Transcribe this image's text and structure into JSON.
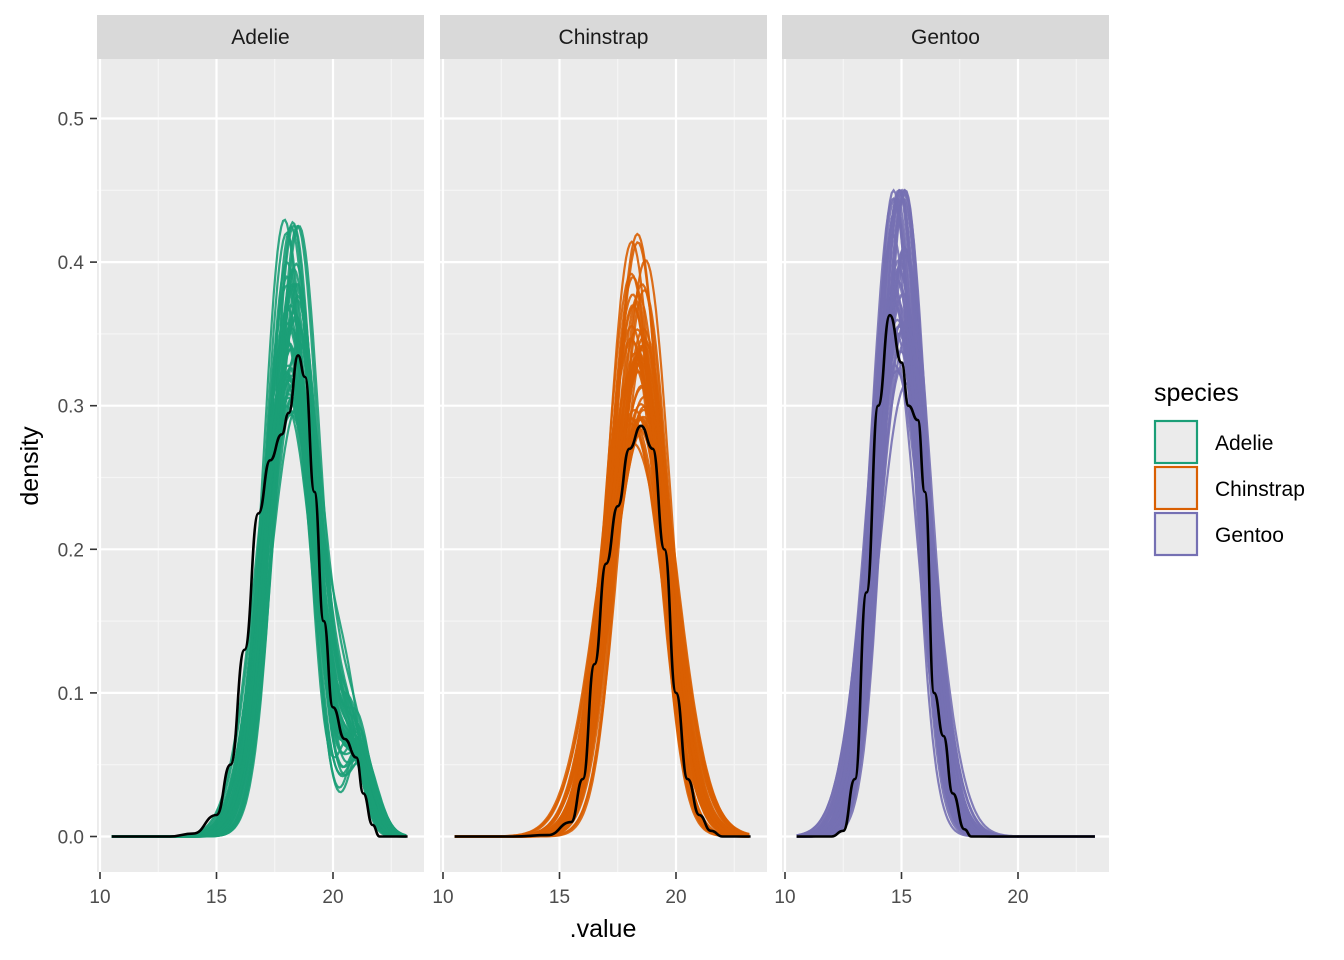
{
  "chart_data": {
    "type": "line",
    "xlabel": ".value",
    "ylabel": "density",
    "xlim": [
      10,
      23.5
    ],
    "ylim": [
      0,
      0.53
    ],
    "x_ticks": [
      10,
      15,
      20
    ],
    "y_ticks": [
      0.0,
      0.1,
      0.2,
      0.3,
      0.4,
      0.5
    ],
    "y_tick_labels": [
      "0.0",
      "0.1",
      "0.2",
      "0.3",
      "0.4",
      "0.5"
    ],
    "grid": true,
    "legend": {
      "title": "species",
      "placement": "right",
      "entries": [
        "Adelie",
        "Chinstrap",
        "Gentoo"
      ]
    },
    "colors": {
      "Adelie": "#1b9e77",
      "Chinstrap": "#d95f02",
      "Gentoo": "#7570b3",
      "observed": "#000000",
      "panel_bg": "#ebebeb",
      "strip_bg": "#d9d9d9",
      "grid": "#ffffff"
    },
    "replicate_count": 50,
    "panels": [
      {
        "name": "Adelie",
        "x_range": [
          10.5,
          23.2
        ],
        "observed": [
          [
            10.5,
            0
          ],
          [
            12,
            0
          ],
          [
            13,
            0
          ],
          [
            14,
            0.002
          ],
          [
            15,
            0.015
          ],
          [
            15.6,
            0.05
          ],
          [
            16.2,
            0.13
          ],
          [
            16.8,
            0.225
          ],
          [
            17.3,
            0.262
          ],
          [
            17.8,
            0.28
          ],
          [
            18.1,
            0.295
          ],
          [
            18.5,
            0.335
          ],
          [
            18.8,
            0.32
          ],
          [
            19.2,
            0.24
          ],
          [
            19.6,
            0.15
          ],
          [
            20,
            0.09
          ],
          [
            20.5,
            0.068
          ],
          [
            21,
            0.055
          ],
          [
            21.3,
            0.03
          ],
          [
            21.7,
            0.008
          ],
          [
            22,
            0
          ],
          [
            23.2,
            0
          ]
        ],
        "rep_params": {
          "components": [
            {
              "mean": 18.2,
              "sd": 1.05,
              "weight": 0.92
            },
            {
              "mean": 21.0,
              "sd": 0.6,
              "weight": 0.08
            }
          ],
          "max_peak": 0.47
        }
      },
      {
        "name": "Chinstrap",
        "x_range": [
          10.5,
          23.2
        ],
        "observed": [
          [
            10.5,
            0
          ],
          [
            13,
            0
          ],
          [
            14.5,
            0.001
          ],
          [
            15.5,
            0.01
          ],
          [
            16,
            0.04
          ],
          [
            16.5,
            0.12
          ],
          [
            17,
            0.19
          ],
          [
            17.5,
            0.23
          ],
          [
            18,
            0.27
          ],
          [
            18.5,
            0.286
          ],
          [
            19,
            0.27
          ],
          [
            19.5,
            0.2
          ],
          [
            20,
            0.1
          ],
          [
            20.5,
            0.04
          ],
          [
            21,
            0.015
          ],
          [
            21.5,
            0.004
          ],
          [
            22,
            0
          ],
          [
            23.2,
            0
          ]
        ],
        "rep_params": {
          "components": [
            {
              "mean": 18.4,
              "sd": 1.25,
              "weight": 1.0
            }
          ],
          "max_peak": 0.515
        }
      },
      {
        "name": "Gentoo",
        "x_range": [
          10.5,
          23.3
        ],
        "observed": [
          [
            10.5,
            0
          ],
          [
            12,
            0
          ],
          [
            12.5,
            0.004
          ],
          [
            13,
            0.04
          ],
          [
            13.5,
            0.17
          ],
          [
            14,
            0.3
          ],
          [
            14.5,
            0.363
          ],
          [
            15,
            0.33
          ],
          [
            15.3,
            0.3
          ],
          [
            15.7,
            0.29
          ],
          [
            16,
            0.24
          ],
          [
            16.4,
            0.1
          ],
          [
            16.8,
            0.07
          ],
          [
            17.2,
            0.03
          ],
          [
            17.7,
            0.005
          ],
          [
            18,
            0
          ],
          [
            23.3,
            0
          ]
        ],
        "rep_params": {
          "components": [
            {
              "mean": 14.9,
              "sd": 1.05,
              "weight": 1.0
            }
          ],
          "max_peak": 0.45
        }
      }
    ]
  }
}
